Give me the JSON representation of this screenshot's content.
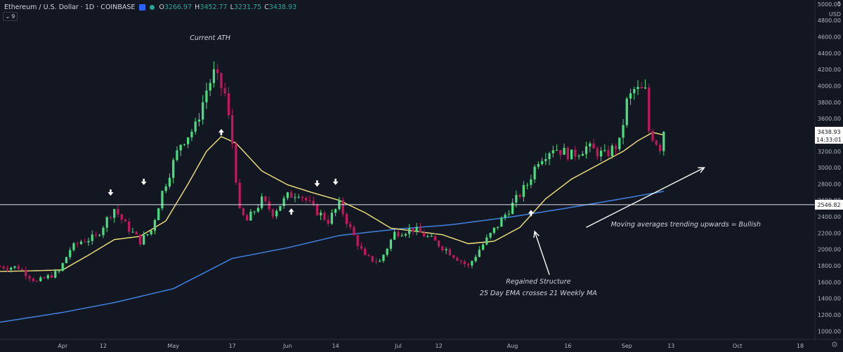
{
  "header": {
    "symbol": "Ethereum / U.S. Dollar · 1D · COINBASE",
    "ohlc": [
      {
        "k": "O",
        "v": "3266.97"
      },
      {
        "k": "H",
        "v": "3452.77"
      },
      {
        "k": "L",
        "v": "3231.75"
      },
      {
        "k": "C",
        "v": "3438.93"
      }
    ],
    "indicator_count": "9",
    "currency": "USD"
  },
  "colors": {
    "background": "#131722",
    "up": "#26a69a",
    "up_candle": "#4ddb81",
    "down": "#c2185b",
    "ema": "#f2e37a",
    "weekly_ma": "#3d7dd6",
    "annotation": "#d1d4dc",
    "axis_text": "#b2b5be"
  },
  "chart_data": {
    "type": "candlestick",
    "title": "Ethereum / U.S. Dollar 1D COINBASE",
    "y_axis": {
      "ticks": [
        1000,
        1200,
        1400,
        1600,
        1800,
        2000,
        2200,
        2400,
        2600,
        2800,
        3000,
        3200,
        3400,
        3600,
        3800,
        4000,
        4200,
        4400,
        4600,
        4800,
        5000
      ],
      "tick_labels": [
        "1000.00",
        "1200.00",
        "1400.00",
        "1600.00",
        "1800.00",
        "2000.00",
        "2200.00",
        "2400.00",
        "2600.00",
        "2800.00",
        "3000.00",
        "3200.00",
        "3400.00",
        "3600.00",
        "3800.00",
        "4000.00",
        "4200.00",
        "4400.00",
        "4600.00",
        "4800.00",
        "5000.00"
      ],
      "top_label": "5",
      "range": [
        900,
        5050
      ]
    },
    "x_axis": {
      "tick_labels": [
        "Apr",
        "12",
        "May",
        "17",
        "Jun",
        "14",
        "Jul",
        "12",
        "Aug",
        "16",
        "Sep",
        "13",
        "Oct",
        "18"
      ],
      "tick_dates": [
        "2021-04-01",
        "2021-04-12",
        "2021-05-01",
        "2021-05-17",
        "2021-06-01",
        "2021-06-14",
        "2021-07-01",
        "2021-07-12",
        "2021-08-01",
        "2021-08-16",
        "2021-09-01",
        "2021-09-13",
        "2021-10-01",
        "2021-10-18"
      ],
      "range": [
        "2021-03-15",
        "2021-10-22"
      ]
    },
    "key_points": [
      {
        "date": "2021-03-15",
        "price": 1790
      },
      {
        "date": "2021-03-20",
        "price": 1780
      },
      {
        "date": "2021-03-25",
        "price": 1600
      },
      {
        "date": "2021-03-31",
        "price": 1730
      },
      {
        "date": "2021-04-03",
        "price": 2000
      },
      {
        "date": "2021-04-06",
        "price": 2100
      },
      {
        "date": "2021-04-10",
        "price": 2150
      },
      {
        "date": "2021-04-14",
        "price": 2440
      },
      {
        "date": "2021-04-15",
        "price": 2500
      },
      {
        "date": "2021-04-18",
        "price": 2300
      },
      {
        "date": "2021-04-22",
        "price": 2100
      },
      {
        "date": "2021-04-25",
        "price": 2230
      },
      {
        "date": "2021-04-28",
        "price": 2700
      },
      {
        "date": "2021-05-03",
        "price": 3300
      },
      {
        "date": "2021-05-07",
        "price": 3500
      },
      {
        "date": "2021-05-10",
        "price": 3950
      },
      {
        "date": "2021-05-12",
        "price": 4150
      },
      {
        "date": "2021-05-15",
        "price": 3900
      },
      {
        "date": "2021-05-17",
        "price": 3300
      },
      {
        "date": "2021-05-19",
        "price": 2450
      },
      {
        "date": "2021-05-21",
        "price": 2350
      },
      {
        "date": "2021-05-25",
        "price": 2600
      },
      {
        "date": "2021-05-28",
        "price": 2450
      },
      {
        "date": "2021-06-01",
        "price": 2650
      },
      {
        "date": "2021-06-04",
        "price": 2700
      },
      {
        "date": "2021-06-08",
        "price": 2500
      },
      {
        "date": "2021-06-12",
        "price": 2350
      },
      {
        "date": "2021-06-15",
        "price": 2550
      },
      {
        "date": "2021-06-18",
        "price": 2250
      },
      {
        "date": "2021-06-22",
        "price": 1900
      },
      {
        "date": "2021-06-26",
        "price": 1850
      },
      {
        "date": "2021-06-30",
        "price": 2200
      },
      {
        "date": "2021-07-05",
        "price": 2250
      },
      {
        "date": "2021-07-09",
        "price": 2150
      },
      {
        "date": "2021-07-14",
        "price": 2000
      },
      {
        "date": "2021-07-20",
        "price": 1790
      },
      {
        "date": "2021-07-23",
        "price": 2000
      },
      {
        "date": "2021-07-28",
        "price": 2300
      },
      {
        "date": "2021-08-01",
        "price": 2550
      },
      {
        "date": "2021-08-05",
        "price": 2800
      },
      {
        "date": "2021-08-08",
        "price": 3100
      },
      {
        "date": "2021-08-12",
        "price": 3250
      },
      {
        "date": "2021-08-17",
        "price": 3150
      },
      {
        "date": "2021-08-21",
        "price": 3250
      },
      {
        "date": "2021-08-26",
        "price": 3150
      },
      {
        "date": "2021-08-30",
        "price": 3300
      },
      {
        "date": "2021-09-01",
        "price": 3800
      },
      {
        "date": "2021-09-03",
        "price": 3950
      },
      {
        "date": "2021-09-06",
        "price": 3930
      },
      {
        "date": "2021-09-07",
        "price": 3450
      },
      {
        "date": "2021-09-10",
        "price": 3250
      },
      {
        "date": "2021-09-11",
        "price": 3438.93
      }
    ],
    "ema25": [
      {
        "date": "2021-03-15",
        "price": 1730
      },
      {
        "date": "2021-03-25",
        "price": 1740
      },
      {
        "date": "2021-04-01",
        "price": 1750
      },
      {
        "date": "2021-04-08",
        "price": 1930
      },
      {
        "date": "2021-04-15",
        "price": 2120
      },
      {
        "date": "2021-04-22",
        "price": 2160
      },
      {
        "date": "2021-04-29",
        "price": 2350
      },
      {
        "date": "2021-05-05",
        "price": 2800
      },
      {
        "date": "2021-05-10",
        "price": 3200
      },
      {
        "date": "2021-05-14",
        "price": 3380
      },
      {
        "date": "2021-05-18",
        "price": 3300
      },
      {
        "date": "2021-05-25",
        "price": 2960
      },
      {
        "date": "2021-06-01",
        "price": 2790
      },
      {
        "date": "2021-06-08",
        "price": 2690
      },
      {
        "date": "2021-06-15",
        "price": 2600
      },
      {
        "date": "2021-06-22",
        "price": 2450
      },
      {
        "date": "2021-06-29",
        "price": 2260
      },
      {
        "date": "2021-07-06",
        "price": 2220
      },
      {
        "date": "2021-07-13",
        "price": 2180
      },
      {
        "date": "2021-07-20",
        "price": 2070
      },
      {
        "date": "2021-07-27",
        "price": 2100
      },
      {
        "date": "2021-08-03",
        "price": 2270
      },
      {
        "date": "2021-08-10",
        "price": 2620
      },
      {
        "date": "2021-08-17",
        "price": 2860
      },
      {
        "date": "2021-08-24",
        "price": 3030
      },
      {
        "date": "2021-08-31",
        "price": 3200
      },
      {
        "date": "2021-09-04",
        "price": 3330
      },
      {
        "date": "2021-09-08",
        "price": 3430
      },
      {
        "date": "2021-09-11",
        "price": 3400
      }
    ],
    "ma21w": [
      {
        "date": "2021-03-15",
        "price": 1110
      },
      {
        "date": "2021-04-01",
        "price": 1230
      },
      {
        "date": "2021-04-15",
        "price": 1350
      },
      {
        "date": "2021-05-01",
        "price": 1520
      },
      {
        "date": "2021-05-17",
        "price": 1890
      },
      {
        "date": "2021-06-01",
        "price": 2020
      },
      {
        "date": "2021-06-15",
        "price": 2170
      },
      {
        "date": "2021-07-01",
        "price": 2250
      },
      {
        "date": "2021-07-15",
        "price": 2300
      },
      {
        "date": "2021-08-01",
        "price": 2400
      },
      {
        "date": "2021-08-15",
        "price": 2500
      },
      {
        "date": "2021-09-01",
        "price": 2630
      },
      {
        "date": "2021-09-11",
        "price": 2710
      }
    ],
    "horizontal_line": {
      "price": 2546.82,
      "label": "2546.82"
    },
    "price_tag": {
      "price": 3438.93,
      "label": "3438.93",
      "countdown": "14:33:01"
    },
    "annotations": [
      {
        "text": "Current ATH",
        "date": "2021-05-11",
        "price": 4560
      },
      {
        "text": "Regained Structure",
        "date": "2021-08-08",
        "price": 1580
      },
      {
        "text": "25 Day EMA crosses 21 Weekly MA",
        "date": "2021-08-08",
        "price": 1440
      },
      {
        "text": "Moving averages trending upwards = Bullish",
        "date": "2021-09-17",
        "price": 2280
      }
    ],
    "markers": [
      {
        "date": "2021-04-14",
        "price": 2700,
        "dir": "down"
      },
      {
        "date": "2021-04-23",
        "price": 2830,
        "dir": "down"
      },
      {
        "date": "2021-05-14",
        "price": 3430,
        "dir": "up"
      },
      {
        "date": "2021-06-02",
        "price": 2460,
        "dir": "up"
      },
      {
        "date": "2021-06-09",
        "price": 2810,
        "dir": "down"
      },
      {
        "date": "2021-06-14",
        "price": 2830,
        "dir": "down"
      },
      {
        "date": "2021-08-06",
        "price": 2440,
        "dir": "up"
      }
    ],
    "arrows": [
      {
        "from": {
          "date": "2021-08-11",
          "price": 1690
        },
        "to": {
          "date": "2021-08-07",
          "price": 2220
        }
      },
      {
        "from": {
          "date": "2021-08-21",
          "price": 2270
        },
        "to": {
          "date": "2021-09-22",
          "price": 3000
        }
      }
    ],
    "grid": false,
    "legend": "none"
  }
}
